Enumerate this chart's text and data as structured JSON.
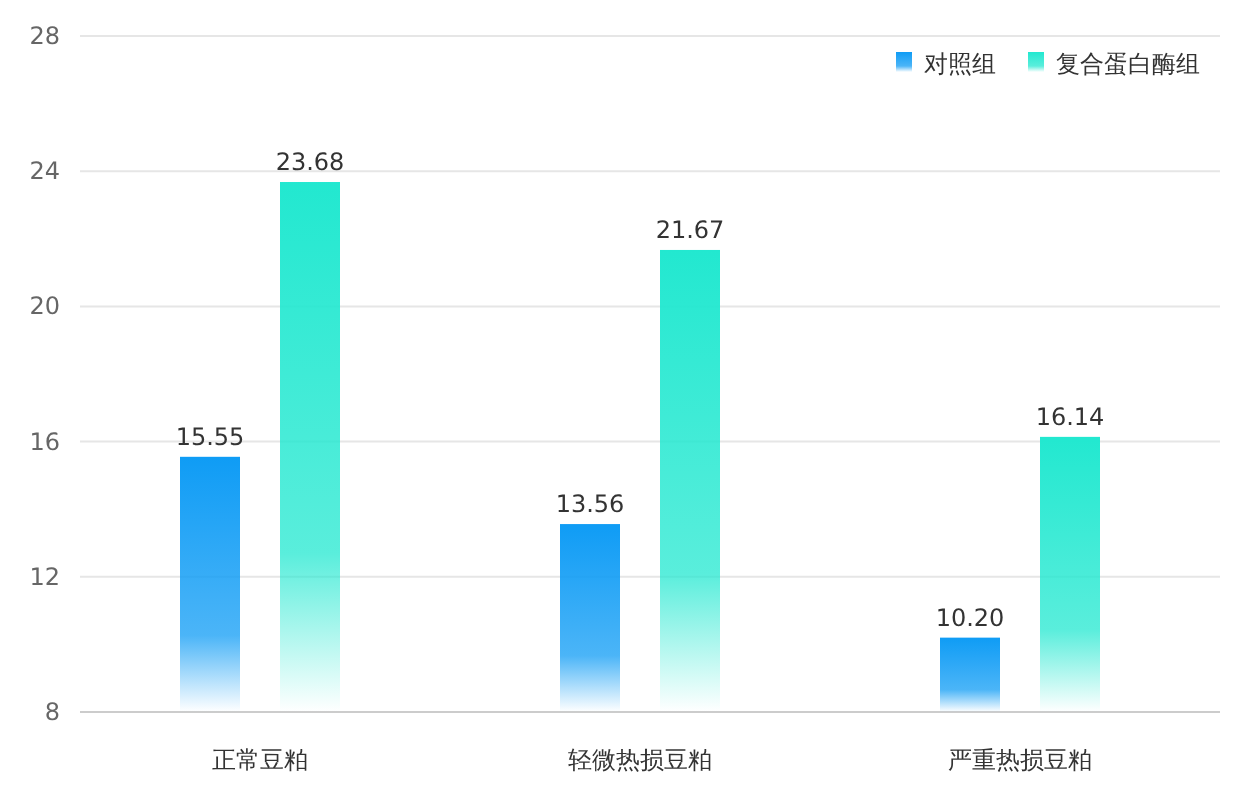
{
  "chart_data": {
    "type": "bar",
    "categories": [
      "正常豆粕",
      "轻微热损豆粕",
      "严重热损豆粕"
    ],
    "series": [
      {
        "name": "对照组",
        "color": "#0f9cf5",
        "values": [
          15.55,
          13.56,
          10.2
        ]
      },
      {
        "name": "复合蛋白酶组",
        "color": "#22e8d0",
        "values": [
          23.68,
          21.67,
          16.14
        ]
      }
    ],
    "value_labels": [
      [
        "15.55",
        "13.56",
        "10.20"
      ],
      [
        "23.68",
        "21.67",
        "16.14"
      ]
    ],
    "ylim": [
      8,
      28
    ],
    "yticks": [
      8,
      12,
      16,
      20,
      24,
      28
    ],
    "grid": "y",
    "legend": "top right"
  }
}
